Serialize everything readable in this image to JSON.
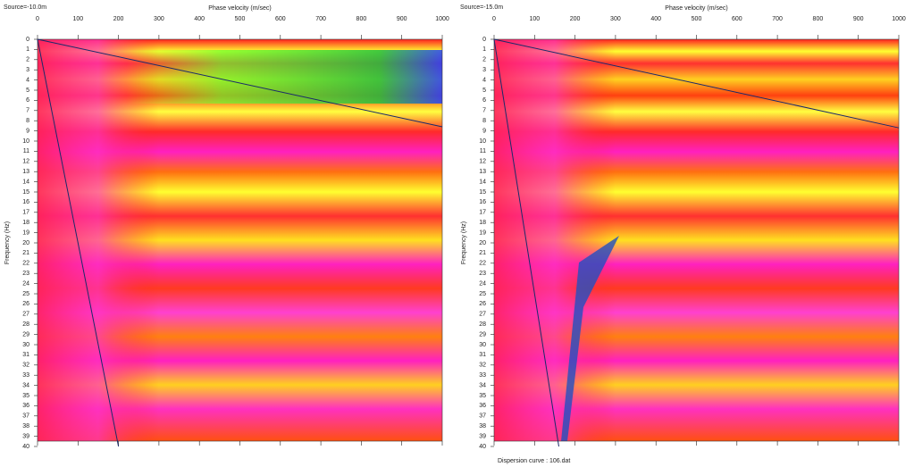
{
  "chart_data": [
    {
      "type": "image",
      "title": "Source=-10.0m",
      "x_label": "Phase velocity (m/sec)",
      "y_label": "Frequency (Hz)",
      "xlim": [
        0,
        1000
      ],
      "xticks": [
        0,
        100,
        200,
        300,
        400,
        500,
        600,
        700,
        800,
        900,
        1000
      ],
      "ylim": [
        0,
        40
      ],
      "yticks": [
        0,
        1,
        2,
        3,
        4,
        5,
        6,
        7,
        8,
        9,
        10,
        11,
        12,
        13,
        14,
        15,
        16,
        17,
        18,
        19,
        20,
        21,
        22,
        23,
        24,
        25,
        26,
        27,
        28,
        29,
        30,
        31,
        32,
        33,
        34,
        35,
        36,
        37,
        38,
        39,
        40
      ],
      "line_color": "#1a2a6a",
      "lines": [
        {
          "x": [
            0,
            1000
          ],
          "y": [
            0,
            8.6
          ]
        },
        {
          "x": [
            0,
            200
          ],
          "y": [
            0,
            40
          ]
        }
      ]
    },
    {
      "type": "image",
      "title": "Source=-15.0m",
      "x_label": "Phase velocity (m/sec)",
      "y_label": "Frequency (Hz)",
      "footnote": "Dispersion curve : 106.dat",
      "xlim": [
        0,
        1000
      ],
      "xticks": [
        0,
        100,
        200,
        300,
        400,
        500,
        600,
        700,
        800,
        900,
        1000
      ],
      "ylim": [
        0,
        40
      ],
      "yticks": [
        0,
        1,
        2,
        3,
        4,
        5,
        6,
        7,
        8,
        9,
        10,
        11,
        12,
        13,
        14,
        15,
        16,
        17,
        18,
        19,
        20,
        21,
        22,
        23,
        24,
        25,
        26,
        27,
        28,
        29,
        30,
        31,
        32,
        33,
        34,
        35,
        36,
        37,
        38,
        39,
        40
      ],
      "line_color": "#1a2a6a",
      "lines": [
        {
          "x": [
            0,
            1000
          ],
          "y": [
            0,
            8.7
          ]
        },
        {
          "x": [
            0,
            160
          ],
          "y": [
            0,
            40
          ]
        }
      ]
    }
  ]
}
